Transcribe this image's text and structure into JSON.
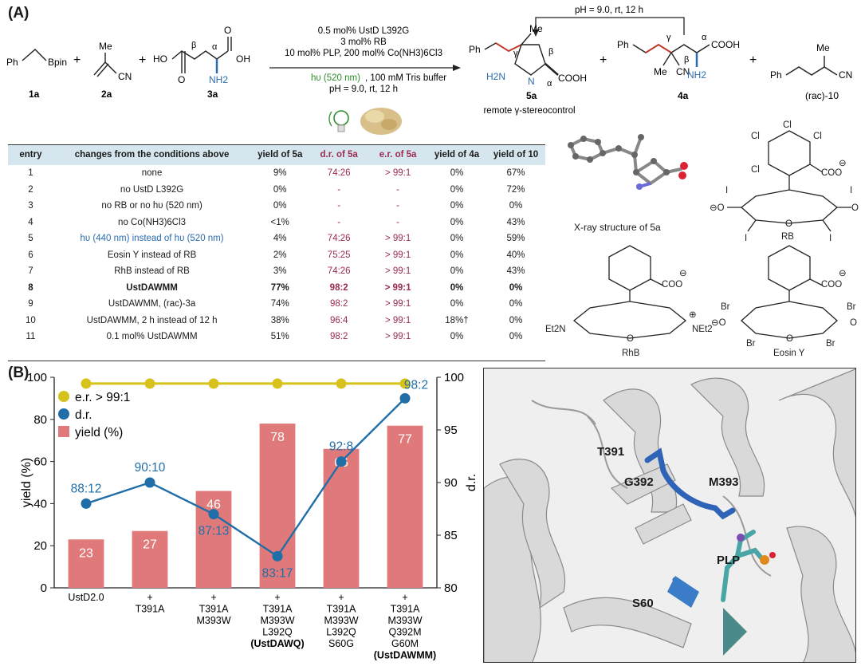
{
  "panel_a": {
    "label": "(A)",
    "reactants": {
      "r1_ph": "Ph",
      "r1_bpin": "Bpin",
      "r1_id": "1a",
      "r2_me": "Me",
      "r2_cn": "CN",
      "r2_id": "2a",
      "r3_ho": "HO",
      "r3_oh": "OH",
      "r3_o1": "O",
      "r3_o2": "O",
      "r3_nh2": "NH2",
      "r3_alpha": "α",
      "r3_beta": "β",
      "r3_id": "3a",
      "plus": "+"
    },
    "conditions": {
      "line1": "0.5 mol% UstD L392G",
      "line2": "3 mol% RB",
      "line3": "10 mol% PLP, 200 mol% Co(NH3)6Cl3",
      "line4_hv": "hυ (520 nm)",
      "line4_rest": ", 100 mM Tris buffer",
      "line5": "pH = 9.0, rt, 12 h"
    },
    "cyclization": "pH = 9.0, rt, 12 h",
    "products": {
      "p5_ph": "Ph",
      "p5_me": "Me",
      "p5_h2n": "H2N",
      "p5_n": "N",
      "p5_cooh": "COOH",
      "p5_gamma": "γ",
      "p5_beta": "β",
      "p5_alpha": "α",
      "p5_id": "5a",
      "p5_note": "remote γ-stereocontrol",
      "p4_ph": "Ph",
      "p4_me": "Me",
      "p4_cn": "CN",
      "p4_cooh": "COOH",
      "p4_nh2": "NH2",
      "p4_gamma": "γ",
      "p4_beta": "β",
      "p4_alpha": "α",
      "p4_id": "4a",
      "p10_ph": "Ph",
      "p10_me": "Me",
      "p10_cn": "CN",
      "p10_id": "(rac)-10"
    },
    "table": {
      "headers": [
        "entry",
        "changes from the conditions above",
        "yield of 5a",
        "d.r. of 5a",
        "e.r. of 5a",
        "yield of 4a",
        "yield of 10"
      ],
      "rows": [
        [
          "1",
          "none",
          "9%",
          "74:26",
          "> 99:1",
          "0%",
          "67%"
        ],
        [
          "2",
          "no UstD L392G",
          "0%",
          "-",
          "-",
          "0%",
          "72%"
        ],
        [
          "3",
          "no RB or no hυ (520 nm)",
          "0%",
          "-",
          "-",
          "0%",
          "0%"
        ],
        [
          "4",
          "no Co(NH3)6Cl3",
          "<1%",
          "-",
          "-",
          "0%",
          "43%"
        ],
        [
          "5",
          "hυ (440 nm) instead of hυ (520 nm)",
          "4%",
          "74:26",
          "> 99:1",
          "0%",
          "59%"
        ],
        [
          "6",
          "Eosin Y instead of RB",
          "2%",
          "75:25",
          "> 99:1",
          "0%",
          "40%"
        ],
        [
          "7",
          "RhB instead of RB",
          "3%",
          "74:26",
          "> 99:1",
          "0%",
          "43%"
        ],
        [
          "8",
          "UstDAWMM",
          "77%",
          "98:2",
          "> 99:1",
          "0%",
          "0%"
        ],
        [
          "9",
          "UstDAWMM, (rac)-3a",
          "74%",
          "98:2",
          "> 99:1",
          "0%",
          "0%"
        ],
        [
          "10",
          "UstDAWMM, 2 h instead of 12 h",
          "38%",
          "96:4",
          "> 99:1",
          "18%†",
          "0%"
        ],
        [
          "11",
          "0.1 mol% UstDAWMM",
          "51%",
          "98:2",
          "> 99:1",
          "0%",
          "0%"
        ]
      ]
    },
    "xray_caption": "X-ray structure of 5a",
    "dyes": {
      "rb_label": "RB",
      "rhb_label": "RhB",
      "eosin_label": "Eosin Y",
      "coo": "COO",
      "minus": "⊖",
      "plus_charge": "⊕",
      "cl": "Cl",
      "i": "I",
      "br": "Br",
      "o": "O",
      "o_minus": "⊖O",
      "et2n": "Et2N",
      "net2": "NEt2"
    }
  },
  "panel_b": {
    "label": "(B)",
    "protein_labels": {
      "t391": "T391",
      "g392": "G392",
      "m393": "M393",
      "plp": "PLP",
      "s60": "S60"
    }
  },
  "chart_data": {
    "type": "bar",
    "categories": [
      "UstD2.0",
      "+ T391A",
      "+ T391A M393W",
      "+ T391A M393W L392Q (UstDAWQ)",
      "+ T391A M393W L392Q S60G",
      "+ T391A M393W Q392M G60M (UstDAWMM)"
    ],
    "category_lines": [
      [
        "UstD2.0"
      ],
      [
        "+",
        "T391A"
      ],
      [
        "+",
        "T391A",
        "M393W"
      ],
      [
        "+",
        "T391A",
        "M393W",
        "L392Q",
        "(UstDAWQ)"
      ],
      [
        "+",
        "T391A",
        "M393W",
        "L392Q",
        "S60G"
      ],
      [
        "+",
        "T391A",
        "M393W",
        "Q392M",
        "G60M",
        "(UstDAWMM)"
      ]
    ],
    "series": [
      {
        "name": "yield (%)",
        "type": "bar",
        "axis": "left",
        "values": [
          23,
          27,
          46,
          78,
          66,
          77
        ],
        "labels": [
          "23",
          "27",
          "46",
          "78",
          "66",
          "77"
        ],
        "color": "#e07a7a"
      },
      {
        "name": "d.r.",
        "type": "line",
        "axis": "right",
        "values": [
          88,
          90,
          87,
          83,
          92,
          98
        ],
        "labels": [
          "88:12",
          "90:10",
          "87:13",
          "83:17",
          "92:8",
          "98:2"
        ],
        "color": "#1f6ea8"
      },
      {
        "name": "e.r. > 99:1",
        "type": "line",
        "axis": "right",
        "values": [
          99.4,
          99.4,
          99.4,
          99.4,
          99.4,
          99.4
        ],
        "color": "#d6c21a"
      }
    ],
    "ylabel": "yield (%)",
    "y2label": "d.r.",
    "ylim": [
      0,
      100
    ],
    "y2lim": [
      80,
      100
    ],
    "yticks": [
      0,
      20,
      40,
      60,
      80,
      100
    ],
    "y2ticks": [
      80,
      85,
      90,
      95,
      100
    ],
    "legend": "top-left",
    "grid": false
  }
}
